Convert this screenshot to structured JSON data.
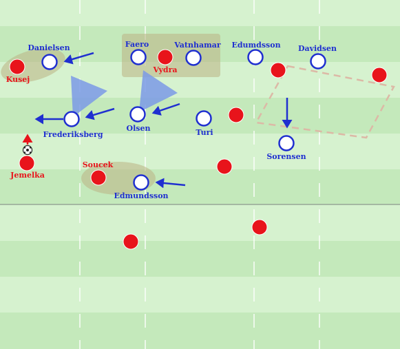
{
  "colors": {
    "pitch_light": "#d6f2cf",
    "pitch_dark": "#c4e9bb",
    "line": "#ffffff",
    "red_team": "#e8141b",
    "blue_team": "#1f2fd0",
    "blue_fill": "#ffffff",
    "cover_shadow": "#7b9ae6",
    "highlight_zone": "#bdb889",
    "dashed_zone": "#dcb9a6",
    "arrow": "#1f2fd0",
    "ball_arrow": "#e8141b"
  },
  "players": {
    "blue": [
      {
        "name": "Danielsen"
      },
      {
        "name": "Faero"
      },
      {
        "name": "Vatnhamar"
      },
      {
        "name": "Edumdsson"
      },
      {
        "name": "Davidsen"
      },
      {
        "name": "Frederiksberg"
      },
      {
        "name": "Olsen"
      },
      {
        "name": "Turi"
      },
      {
        "name": "Sorensen"
      },
      {
        "name": "Edmundsson"
      }
    ],
    "red": [
      {
        "name": "Kusej"
      },
      {
        "name": "Vydra"
      },
      {
        "name": "Jemelka"
      },
      {
        "name": "Soucek"
      },
      {
        "name": ""
      },
      {
        "name": ""
      },
      {
        "name": ""
      },
      {
        "name": ""
      },
      {
        "name": ""
      }
    ]
  },
  "icons": {
    "ball": "soccer-ball-icon"
  }
}
